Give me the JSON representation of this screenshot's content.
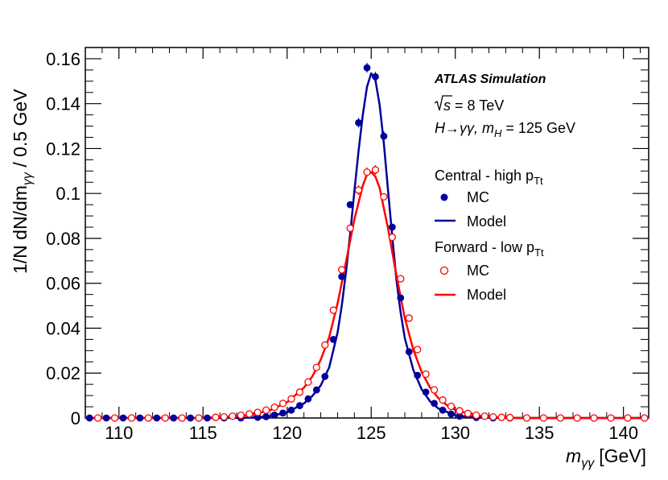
{
  "chart_data": {
    "type": "scatter",
    "title": "",
    "xlabel_main": "m",
    "xlabel_sub": "γγ",
    "xlabel_unit": "[GeV]",
    "ylabel_prefix": "1/N dN/dm",
    "ylabel_sub": "γγ",
    "ylabel_suffix": " / 0.5 GeV",
    "xlim": [
      108,
      141.5
    ],
    "ylim": [
      0,
      0.165
    ],
    "xticks": [
      110,
      115,
      120,
      125,
      130,
      135,
      140
    ],
    "xtick_labels": [
      "110",
      "115",
      "120",
      "125",
      "130",
      "135",
      "140"
    ],
    "yticks": [
      0,
      0.02,
      0.04,
      0.06,
      0.08,
      0.1,
      0.12,
      0.14,
      0.16
    ],
    "ytick_labels": [
      "0",
      "0.02",
      "0.04",
      "0.06",
      "0.08",
      "0.1",
      "0.12",
      "0.14",
      "0.16"
    ],
    "grid": false,
    "annotations": {
      "experiment": "ATLAS Simulation",
      "sqrt_s": "s",
      "energy": " = 8 TeV",
      "process_main": "H→γγ, m",
      "process_sub": "H",
      "process_tail": " = 125 GeV"
    },
    "legend": [
      {
        "header": "Central - high p",
        "header_sub": "Tt",
        "mc_label": "MC",
        "model_label": "Model",
        "color": "#000099",
        "marker": "filled-circle"
      },
      {
        "header": "Forward - low p",
        "header_sub": "Tt",
        "mc_label": "MC",
        "model_label": "Model",
        "color": "#ff0000",
        "marker": "open-circle"
      }
    ],
    "series": [
      {
        "name": "Central - high pTt MC",
        "kind": "points",
        "color": "#000099",
        "x": [
          108.25,
          109.25,
          110.25,
          111.25,
          112.25,
          113.25,
          114.25,
          115.25,
          116.25,
          117.25,
          118.25,
          118.75,
          119.25,
          119.75,
          120.25,
          120.75,
          121.25,
          121.75,
          122.25,
          122.75,
          123.25,
          123.75,
          124.25,
          124.75,
          125.25,
          125.75,
          126.25,
          126.75,
          127.25,
          127.75,
          128.25,
          128.75,
          129.25,
          129.75,
          130.25,
          131.25,
          132.25,
          133.25,
          134.25,
          135.25,
          136.25,
          137.25,
          138.25,
          139.25,
          140.25,
          141.25
        ],
        "y": [
          0,
          0,
          0,
          0,
          0,
          0,
          0,
          0,
          0,
          0,
          0.0003,
          0.0006,
          0.0013,
          0.0022,
          0.0035,
          0.0055,
          0.0085,
          0.0125,
          0.0185,
          0.035,
          0.063,
          0.095,
          0.1315,
          0.156,
          0.152,
          0.1255,
          0.085,
          0.0535,
          0.0295,
          0.019,
          0.0115,
          0.0065,
          0.0035,
          0.0018,
          0.0008,
          0.0002,
          0,
          0,
          0,
          0,
          0,
          0,
          0,
          0,
          0,
          0
        ]
      },
      {
        "name": "Central - high pTt Model",
        "kind": "line",
        "color": "#000099",
        "x": [
          108,
          116,
          118,
          119,
          120,
          121,
          121.5,
          122,
          122.5,
          123,
          123.25,
          123.5,
          123.75,
          124,
          124.25,
          124.5,
          124.75,
          125,
          125.25,
          125.5,
          125.75,
          126,
          126.25,
          126.5,
          126.75,
          127,
          127.5,
          128,
          128.5,
          129,
          130,
          131,
          133,
          141.5
        ],
        "y": [
          0,
          0,
          0.0002,
          0.0008,
          0.0025,
          0.0065,
          0.0098,
          0.0145,
          0.0225,
          0.038,
          0.05,
          0.065,
          0.082,
          0.101,
          0.119,
          0.135,
          0.1475,
          0.1535,
          0.1505,
          0.1395,
          0.1225,
          0.1015,
          0.081,
          0.0615,
          0.047,
          0.0355,
          0.0215,
          0.0128,
          0.0074,
          0.0042,
          0.0012,
          0.0003,
          0,
          0
        ]
      },
      {
        "name": "Forward - low pTt MC",
        "kind": "points",
        "color": "#ff0000",
        "x": [
          108.75,
          109.75,
          110.75,
          111.75,
          112.75,
          113.75,
          114.75,
          115.75,
          116.25,
          116.75,
          117.25,
          117.75,
          118.25,
          118.75,
          119.25,
          119.75,
          120.25,
          120.75,
          121.25,
          121.75,
          122.25,
          122.75,
          123.25,
          123.75,
          124.25,
          124.75,
          125.25,
          125.75,
          126.25,
          126.75,
          127.25,
          127.75,
          128.25,
          128.75,
          129.25,
          129.75,
          130.25,
          130.75,
          131.25,
          131.75,
          132.25,
          132.75,
          133.25,
          134.25,
          135.25,
          136.25,
          137.25,
          138.25,
          139.25,
          140.25,
          141.25
        ],
        "y": [
          0,
          0,
          0,
          0,
          0,
          0,
          0,
          0.0003,
          0.0005,
          0.0008,
          0.0012,
          0.0018,
          0.0025,
          0.0035,
          0.0048,
          0.0065,
          0.0085,
          0.0115,
          0.016,
          0.0225,
          0.0325,
          0.048,
          0.066,
          0.0845,
          0.1015,
          0.1095,
          0.1105,
          0.0985,
          0.0805,
          0.062,
          0.0445,
          0.0305,
          0.0195,
          0.0125,
          0.008,
          0.0052,
          0.0032,
          0.002,
          0.0012,
          0.0008,
          0.0005,
          0.0003,
          0.0002,
          0,
          0,
          0,
          0,
          0,
          0,
          0,
          0
        ]
      },
      {
        "name": "Forward - low pTt Model",
        "kind": "line",
        "color": "#ff0000",
        "x": [
          108,
          115,
          117,
          118,
          119,
          120,
          121,
          121.5,
          122,
          122.5,
          123,
          123.5,
          124,
          124.5,
          124.75,
          125,
          125.25,
          125.5,
          126,
          126.5,
          127,
          127.5,
          128,
          128.5,
          129,
          129.5,
          130,
          131,
          132,
          133,
          134,
          141.5
        ],
        "y": [
          0,
          0,
          0.0008,
          0.0016,
          0.0035,
          0.007,
          0.0135,
          0.0185,
          0.026,
          0.036,
          0.051,
          0.0695,
          0.0885,
          0.1035,
          0.1085,
          0.1095,
          0.1075,
          0.1025,
          0.0845,
          0.0635,
          0.0445,
          0.0305,
          0.0205,
          0.0135,
          0.0088,
          0.0057,
          0.0036,
          0.0014,
          0.0005,
          0.0002,
          0,
          0
        ]
      }
    ]
  }
}
